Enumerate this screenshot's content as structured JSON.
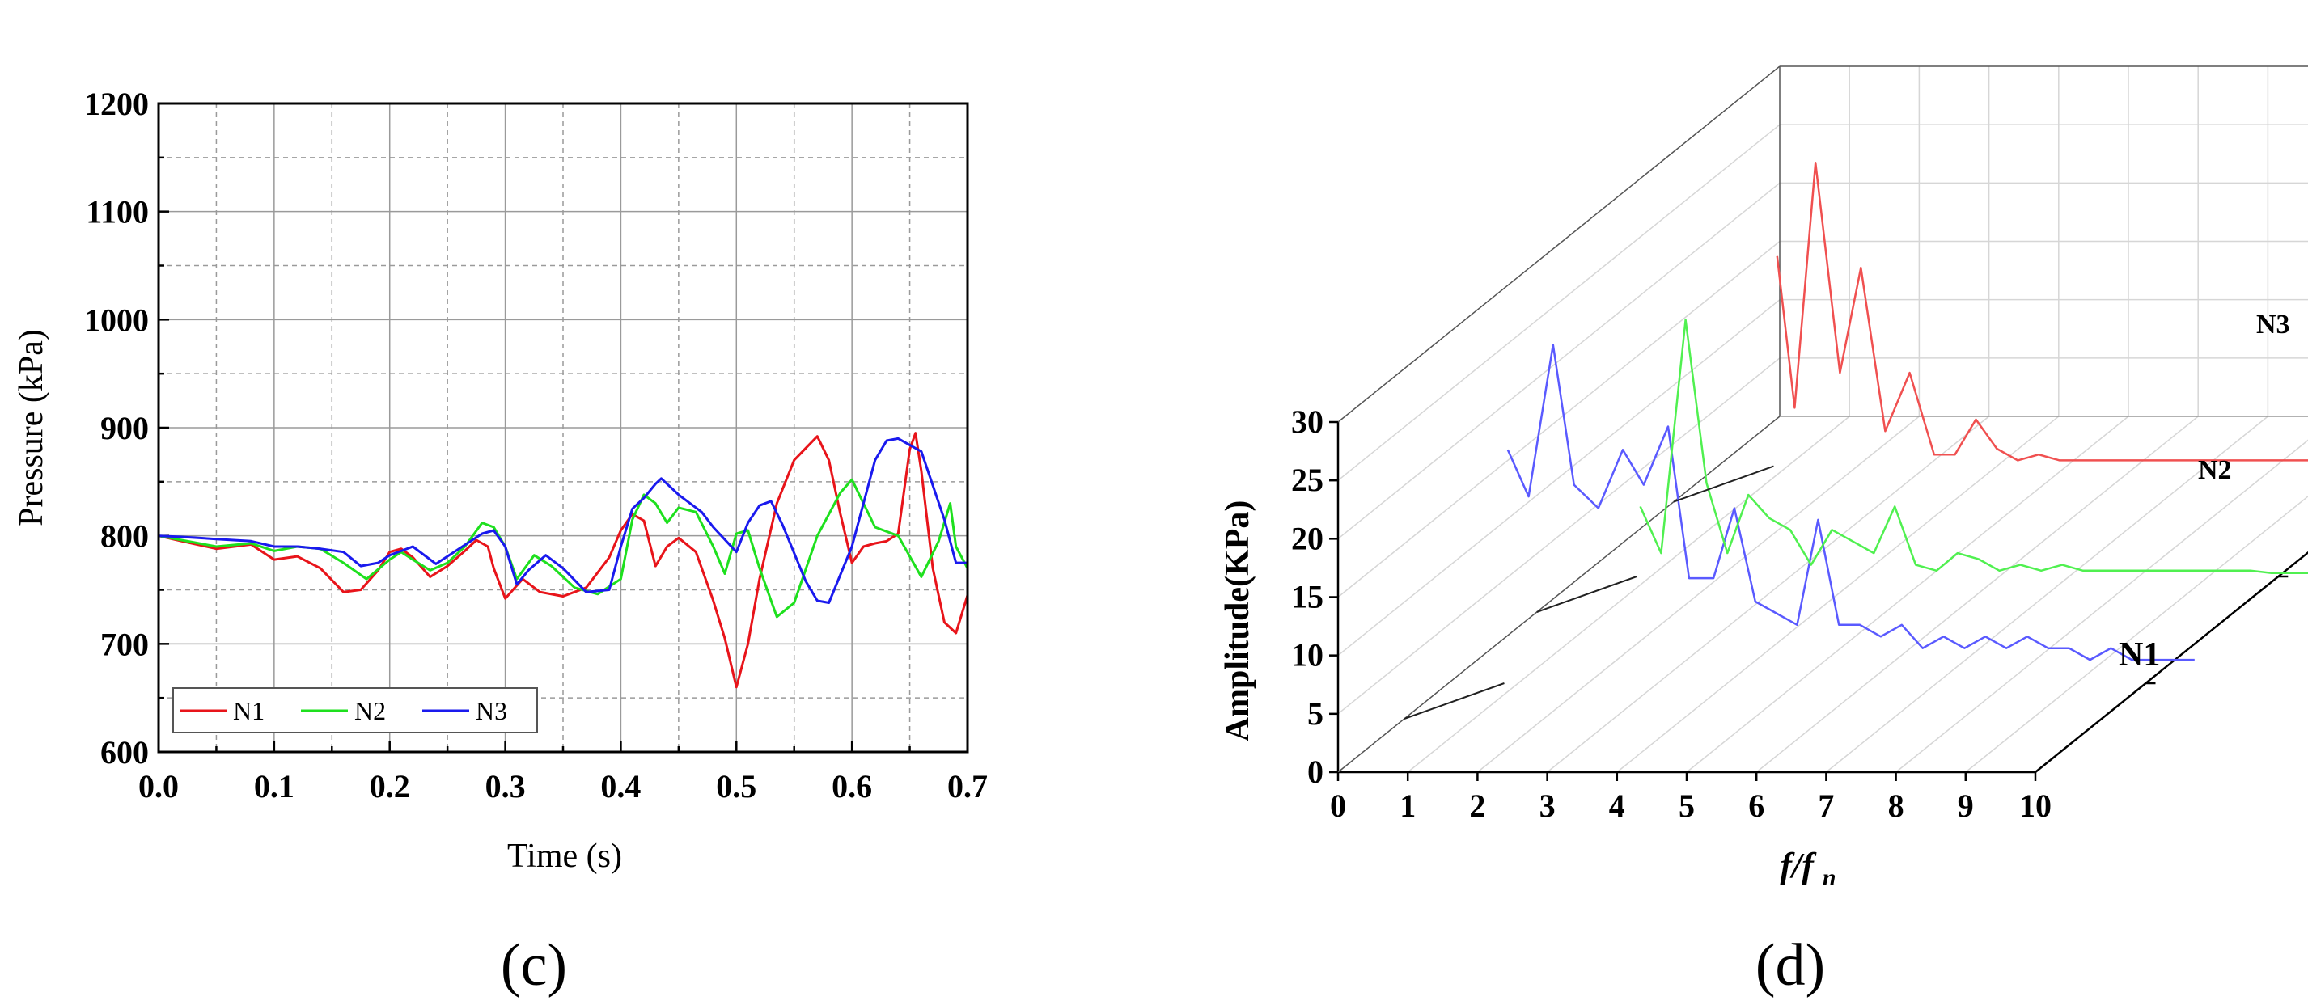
{
  "panel_labels": [
    "(c)",
    "(d)"
  ],
  "chart_data": [
    {
      "type": "line",
      "xlabel": "Time (s)",
      "ylabel": "Pressure (kPa)",
      "xlim": [
        0.0,
        0.7
      ],
      "ylim": [
        600,
        1200
      ],
      "x_ticks": [
        "0.0",
        "0.1",
        "0.2",
        "0.3",
        "0.4",
        "0.5",
        "0.6",
        "0.7"
      ],
      "y_ticks": [
        "600",
        "700",
        "800",
        "900",
        "1000",
        "1100",
        "1200"
      ],
      "grid": true,
      "legend_position": "bottom-left",
      "series": [
        {
          "name": "N1",
          "color": "#e8141a",
          "x": [
            0,
            0.02,
            0.05,
            0.08,
            0.1,
            0.12,
            0.14,
            0.16,
            0.175,
            0.19,
            0.2,
            0.21,
            0.22,
            0.235,
            0.25,
            0.265,
            0.275,
            0.285,
            0.29,
            0.3,
            0.315,
            0.33,
            0.35,
            0.37,
            0.39,
            0.4,
            0.41,
            0.42,
            0.43,
            0.44,
            0.45,
            0.465,
            0.48,
            0.49,
            0.5,
            0.51,
            0.52,
            0.535,
            0.55,
            0.57,
            0.58,
            0.59,
            0.6,
            0.61,
            0.62,
            0.63,
            0.64,
            0.65,
            0.655,
            0.66,
            0.67,
            0.68,
            0.69,
            0.7
          ],
          "y": [
            800,
            795,
            788,
            792,
            778,
            781,
            770,
            748,
            750,
            768,
            785,
            788,
            780,
            762,
            772,
            786,
            796,
            790,
            770,
            742,
            760,
            748,
            744,
            752,
            780,
            805,
            820,
            814,
            772,
            790,
            798,
            785,
            740,
            705,
            660,
            700,
            760,
            830,
            870,
            892,
            870,
            820,
            775,
            790,
            793,
            795,
            802,
            880,
            895,
            860,
            770,
            720,
            710,
            745
          ]
        },
        {
          "name": "N2",
          "color": "#1ee01e",
          "x": [
            0,
            0.02,
            0.05,
            0.08,
            0.1,
            0.12,
            0.14,
            0.16,
            0.18,
            0.2,
            0.21,
            0.22,
            0.235,
            0.25,
            0.265,
            0.28,
            0.29,
            0.3,
            0.31,
            0.325,
            0.34,
            0.36,
            0.38,
            0.4,
            0.41,
            0.42,
            0.43,
            0.44,
            0.45,
            0.465,
            0.48,
            0.49,
            0.5,
            0.51,
            0.52,
            0.535,
            0.55,
            0.57,
            0.59,
            0.6,
            0.61,
            0.62,
            0.64,
            0.66,
            0.675,
            0.685,
            0.69,
            0.7
          ],
          "y": [
            800,
            796,
            790,
            793,
            786,
            790,
            788,
            775,
            760,
            778,
            785,
            778,
            768,
            775,
            790,
            812,
            808,
            790,
            760,
            782,
            772,
            752,
            746,
            760,
            815,
            838,
            830,
            812,
            826,
            822,
            790,
            765,
            802,
            805,
            770,
            725,
            738,
            800,
            840,
            852,
            830,
            808,
            800,
            762,
            795,
            830,
            790,
            770
          ]
        },
        {
          "name": "N3",
          "color": "#1a1aee",
          "x": [
            0,
            0.02,
            0.05,
            0.08,
            0.1,
            0.12,
            0.14,
            0.16,
            0.175,
            0.19,
            0.2,
            0.21,
            0.22,
            0.24,
            0.26,
            0.28,
            0.29,
            0.3,
            0.31,
            0.32,
            0.335,
            0.35,
            0.37,
            0.39,
            0.4,
            0.41,
            0.42,
            0.43,
            0.435,
            0.45,
            0.47,
            0.48,
            0.5,
            0.51,
            0.52,
            0.53,
            0.54,
            0.56,
            0.57,
            0.58,
            0.6,
            0.62,
            0.63,
            0.64,
            0.66,
            0.68,
            0.69,
            0.7
          ],
          "y": [
            800,
            799,
            797,
            795,
            790,
            790,
            788,
            785,
            772,
            775,
            782,
            786,
            790,
            774,
            788,
            802,
            805,
            790,
            755,
            768,
            782,
            770,
            748,
            750,
            790,
            825,
            835,
            848,
            853,
            838,
            822,
            808,
            785,
            812,
            828,
            832,
            810,
            758,
            740,
            738,
            790,
            870,
            888,
            890,
            878,
            815,
            775,
            775
          ]
        }
      ]
    },
    {
      "type": "line",
      "title": "",
      "xlabel": "f/fn",
      "ylabel": "Amplitude(KPa)",
      "xlim": [
        0,
        10
      ],
      "zlim": [
        0,
        30
      ],
      "x_ticks": [
        "0",
        "1",
        "2",
        "3",
        "4",
        "5",
        "6",
        "7",
        "8",
        "9",
        "10"
      ],
      "y_ticks": [
        "0",
        "5",
        "10",
        "15",
        "20",
        "25",
        "30"
      ],
      "series_labels": [
        "N1",
        "N2",
        "N3"
      ],
      "series": [
        {
          "name": "N1",
          "color": "#5a5aff",
          "x": [
            0.05,
            0.35,
            0.7,
            1.0,
            1.35,
            1.7,
            2.0,
            2.35,
            2.65,
            3.0,
            3.3,
            3.6,
            3.9,
            4.2,
            4.5,
            4.8,
            5.1,
            5.4,
            5.7,
            6.0,
            6.3,
            6.6,
            6.9,
            7.2,
            7.5,
            7.8,
            8.1,
            8.4,
            8.7,
            9.0,
            9.3,
            9.6,
            9.9
          ],
          "y": [
            20,
            16,
            29,
            17,
            15,
            20,
            17,
            22,
            9,
            9,
            15,
            7,
            6,
            5,
            14,
            5,
            5,
            4,
            5,
            3,
            4,
            3,
            4,
            3,
            4,
            3,
            3,
            2,
            3,
            2,
            2,
            2,
            2
          ]
        },
        {
          "name": "N2",
          "color": "#50f050",
          "x": [
            0.05,
            0.35,
            0.7,
            1.0,
            1.3,
            1.6,
            1.9,
            2.2,
            2.5,
            2.8,
            3.1,
            3.4,
            3.7,
            4.0,
            4.3,
            4.6,
            4.9,
            5.2,
            5.5,
            5.8,
            6.1,
            6.4,
            6.7,
            7.0,
            7.3,
            7.6,
            7.9,
            8.2,
            8.5,
            8.8,
            9.1,
            9.4,
            9.7
          ],
          "y": [
            6,
            2,
            22,
            8,
            2,
            7,
            5,
            4,
            1,
            4,
            3,
            2,
            6,
            1,
            0.5,
            2,
            1.5,
            0.5,
            1,
            0.5,
            1,
            0.5,
            0.5,
            0.5,
            0.5,
            0.5,
            0.5,
            0.5,
            0.5,
            0.5,
            0.3,
            0.3,
            0.3
          ]
        },
        {
          "name": "N3",
          "color": "#f05050",
          "x": [
            0.05,
            0.3,
            0.6,
            0.95,
            1.25,
            1.6,
            1.95,
            2.3,
            2.6,
            2.9,
            3.2,
            3.5,
            3.8,
            4.1,
            4.4,
            4.7,
            5.0,
            5.3,
            5.6,
            5.9,
            6.2,
            6.5,
            6.8,
            7.1,
            7.4,
            7.7,
            8.0,
            8.3,
            8.6,
            8.9,
            9.2,
            9.5,
            9.8
          ],
          "y": [
            18,
            5,
            26,
            8,
            17,
            3,
            8,
            1,
            1,
            4,
            1.5,
            0.5,
            1,
            0.5,
            0.5,
            0.5,
            0.5,
            0.5,
            0.5,
            0.5,
            0.5,
            0.5,
            0.5,
            0.5,
            0.5,
            0.5,
            0.5,
            0.5,
            0.5,
            0.5,
            1,
            0.5,
            0.5
          ]
        }
      ]
    }
  ]
}
